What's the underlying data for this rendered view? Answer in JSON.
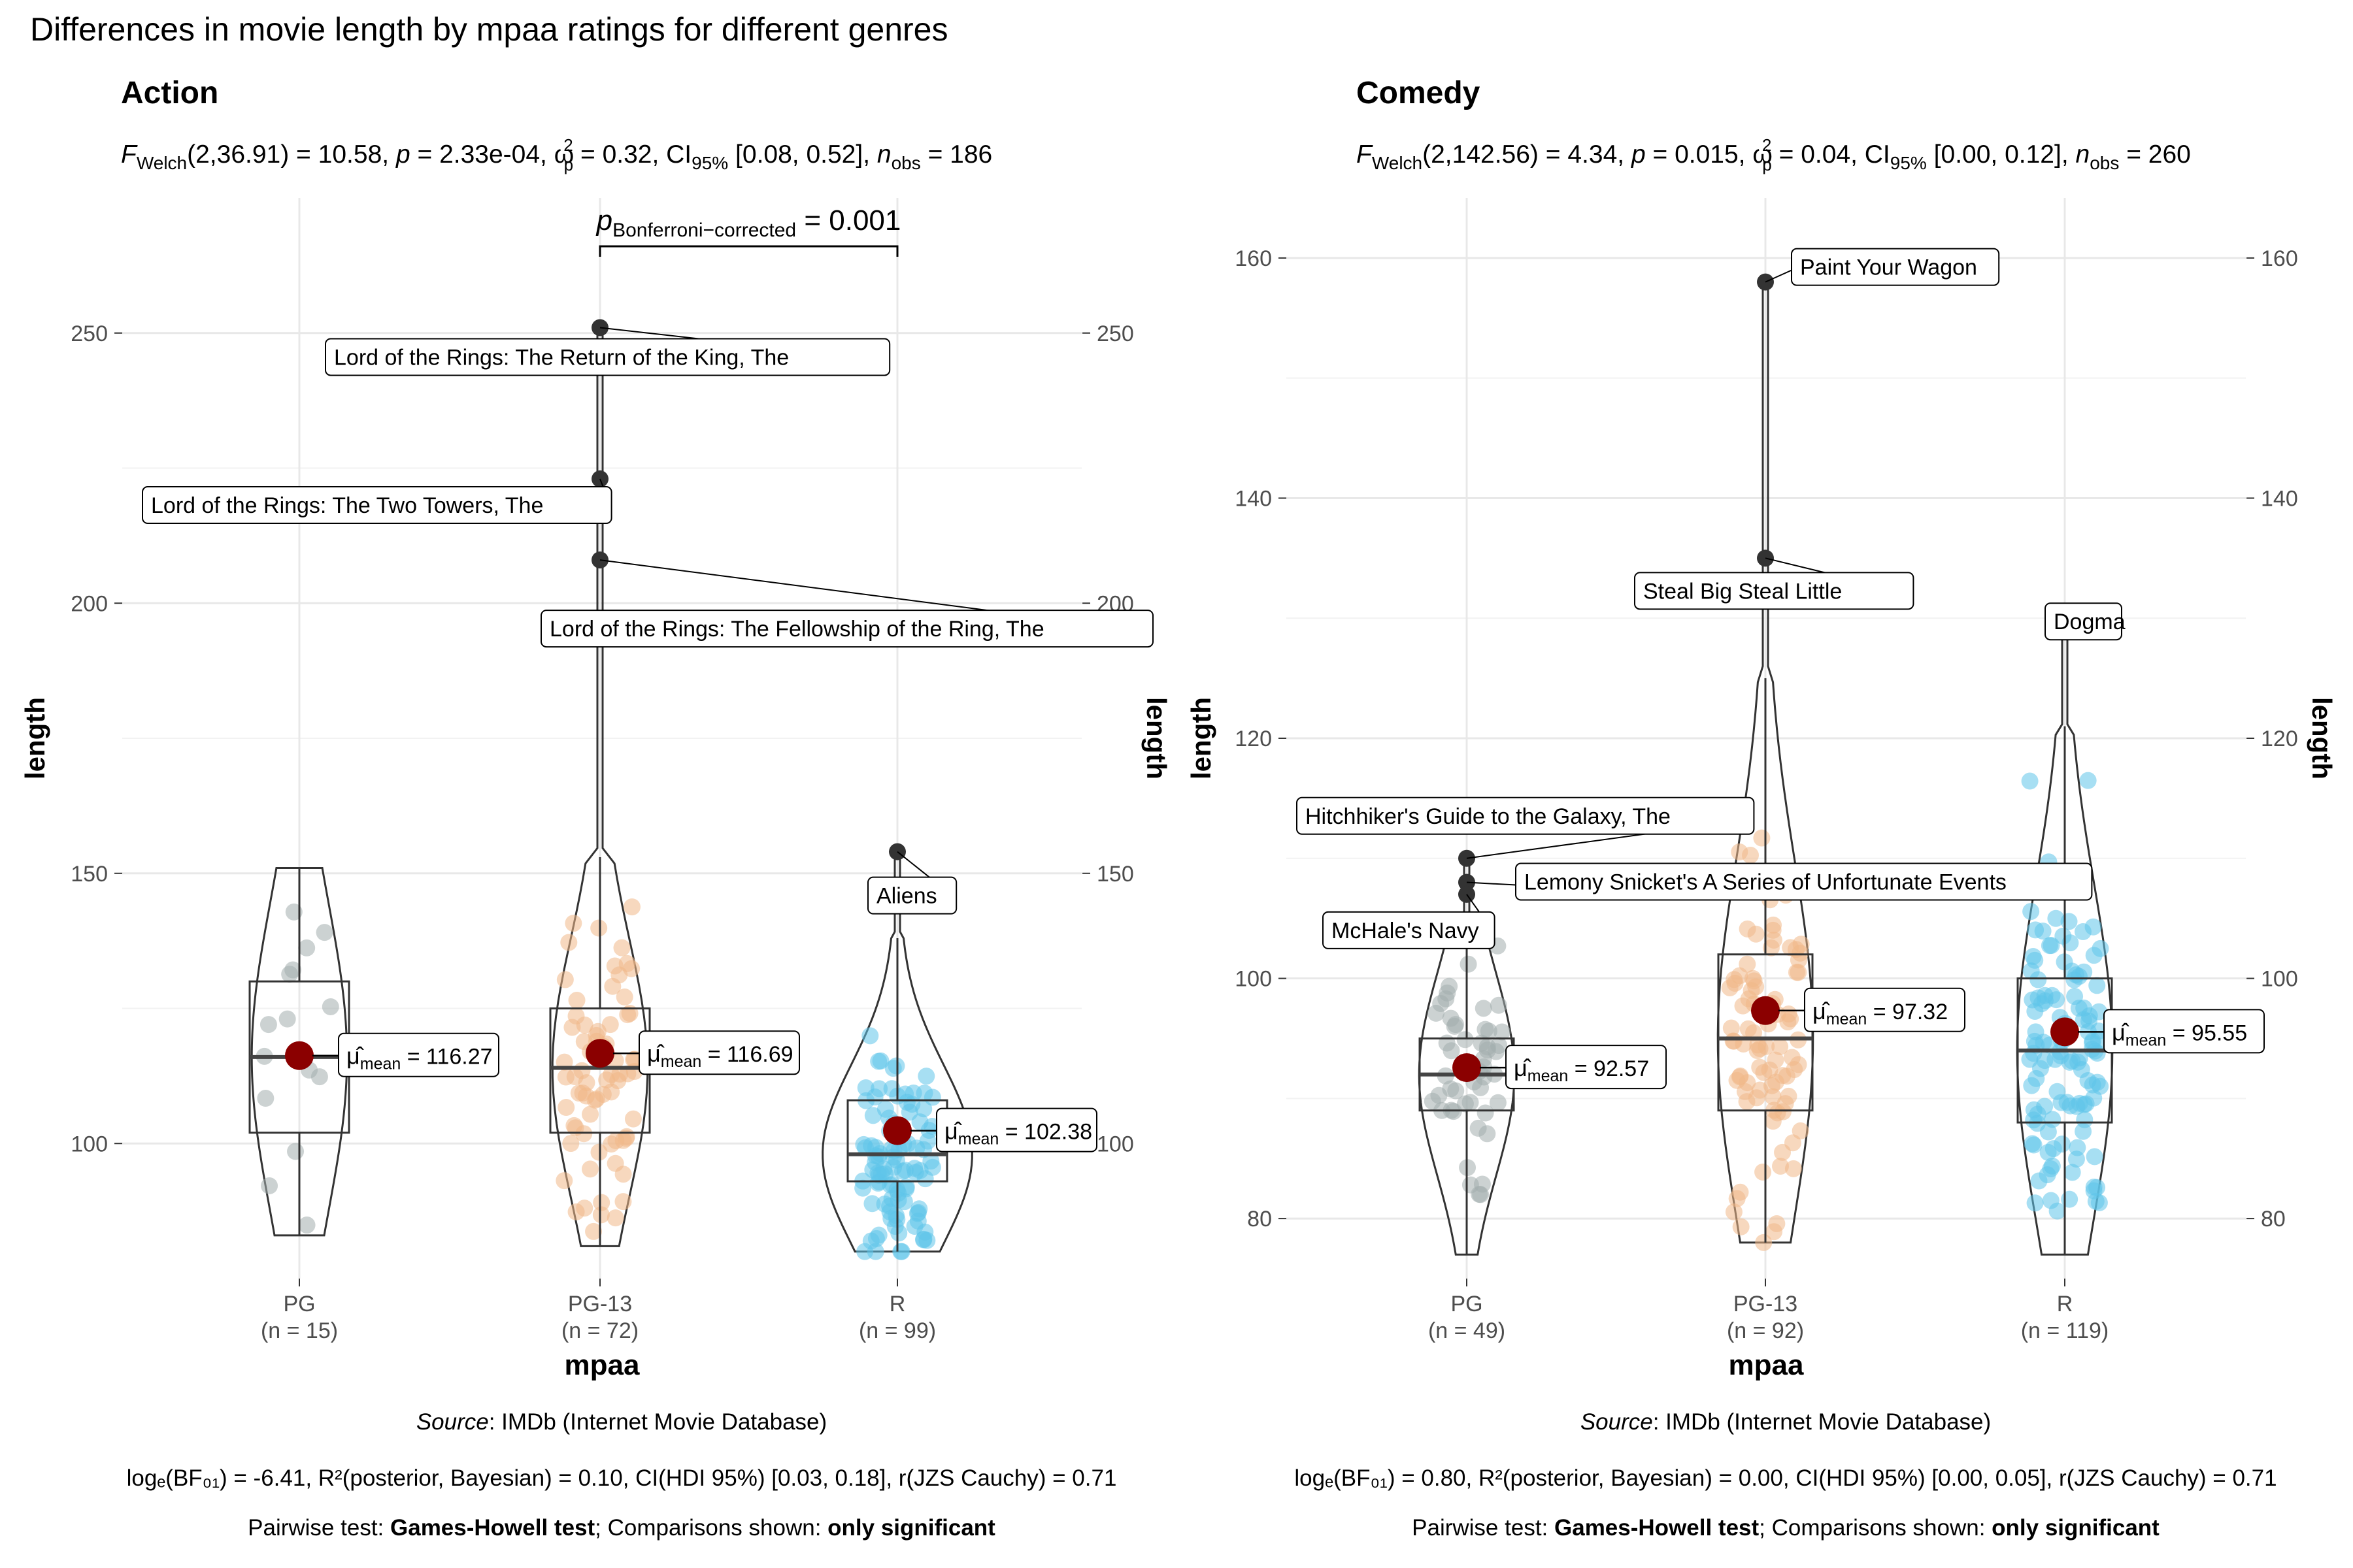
{
  "title": "Differences in movie length by mpaa ratings for different genres",
  "colors": {
    "PG": "#a3adad",
    "PG-13": "#f0b888",
    "R": "#5ec4ea",
    "mean": "#8b0000",
    "outlier": "#333333",
    "grid": "#e8e8e8"
  },
  "chart_data": [
    {
      "type": "violin-box-scatter",
      "facet": "Action",
      "stats_sub": {
        "f": "F",
        "fsub": "Welch",
        "df": "(2,36.91) = 10.58, ",
        "p": "p",
        "pval": " = 2.33e-04, ",
        "omega": "ω",
        "omsup": "2",
        "omsub": "p",
        "omval": " = 0.32, CI",
        "cisub": "95%",
        "ci": " [0.08, 0.52], ",
        "n": "n",
        "nsub": "obs",
        "nval": " = 186"
      },
      "xlabel": "mpaa",
      "ylabel": "length",
      "ylim": [
        75,
        275
      ],
      "yticks": [
        100,
        150,
        200,
        250
      ],
      "categories": [
        "PG",
        "PG-13",
        "R"
      ],
      "counts": [
        "(n = 15)",
        "(n = 72)",
        "(n = 99)"
      ],
      "box": [
        {
          "q1": 102,
          "median": 116,
          "q3": 130,
          "wlo": 83,
          "whi": 151
        },
        {
          "q1": 102,
          "median": 114,
          "q3": 125,
          "wlo": 81,
          "whi": 153
        },
        {
          "q1": 93,
          "median": 98,
          "q3": 108,
          "wlo": 80,
          "whi": 138
        }
      ],
      "means": [
        116.27,
        116.69,
        102.38
      ],
      "mean_labels": [
        "116.27",
        "116.69",
        "102.38"
      ],
      "outliers": [
        {
          "group": 1,
          "value": 251,
          "label": "Lord of the Rings: The Return of the King, The"
        },
        {
          "group": 1,
          "value": 223,
          "label": "Lord of the Rings: The Two Towers, The"
        },
        {
          "group": 1,
          "value": 208,
          "label": "Lord of the Rings: The Fellowship of the Ring, The"
        },
        {
          "group": 2,
          "value": 154,
          "label": "Aliens"
        }
      ],
      "pairwise": {
        "from": 1,
        "to": 2,
        "label_p": "p",
        "label_sub": "Bonferroni−corrected",
        "label_val": " = 0.001"
      },
      "caption_source": "Source",
      "caption_source_rest": ": IMDb (Internet Movie Database)",
      "bayes": "logₑ(BF₀₁) = -6.41, R²(posterior, Bayesian) = 0.10, CI(HDI 95%) [0.03, 0.18], r(JZS Cauchy) = 0.71",
      "pairwise_note": {
        "a": "Pairwise test: ",
        "b": "Games-Howell test",
        "c": "; Comparisons shown: ",
        "d": "only significant"
      }
    },
    {
      "type": "violin-box-scatter",
      "facet": "Comedy",
      "stats_sub": {
        "f": "F",
        "fsub": "Welch",
        "df": "(2,142.56) = 4.34, ",
        "p": "p",
        "pval": " = 0.015, ",
        "omega": "ω",
        "omsup": "2",
        "omsub": "p",
        "omval": " = 0.04, CI",
        "cisub": "95%",
        "ci": " [0.00, 0.12], ",
        "n": "n",
        "nsub": "obs",
        "nval": " = 260"
      },
      "xlabel": "mpaa",
      "ylabel": "length",
      "ylim": [
        75,
        165
      ],
      "yticks": [
        80,
        100,
        120,
        140,
        160
      ],
      "categories": [
        "PG",
        "PG-13",
        "R"
      ],
      "counts": [
        "(n = 49)",
        "(n = 92)",
        "(n = 119)"
      ],
      "box": [
        {
          "q1": 89,
          "median": 92,
          "q3": 95,
          "wlo": 77,
          "whi": 103
        },
        {
          "q1": 89,
          "median": 95,
          "q3": 102,
          "wlo": 78,
          "whi": 125
        },
        {
          "q1": 88,
          "median": 94,
          "q3": 100,
          "wlo": 77,
          "whi": 121
        }
      ],
      "means": [
        92.57,
        97.32,
        95.55
      ],
      "mean_labels": [
        "92.57",
        "97.32",
        "95.55"
      ],
      "outliers": [
        {
          "group": 1,
          "value": 158,
          "label": "Paint Your Wagon"
        },
        {
          "group": 1,
          "value": 135,
          "label": "Steal Big Steal Little"
        },
        {
          "group": 2,
          "value": 130,
          "label": "Dogma"
        },
        {
          "group": 0,
          "value": 110,
          "label": "Hitchhiker's Guide to the Galaxy, The"
        },
        {
          "group": 0,
          "value": 108,
          "label": "Lemony Snicket's A Series of Unfortunate Events"
        },
        {
          "group": 0,
          "value": 107,
          "label": "McHale's Navy"
        }
      ],
      "caption_source": "Source",
      "caption_source_rest": ": IMDb (Internet Movie Database)",
      "bayes": "logₑ(BF₀₁) = 0.80, R²(posterior, Bayesian) = 0.00, CI(HDI 95%) [0.00, 0.05], r(JZS Cauchy) = 0.71",
      "pairwise_note": {
        "a": "Pairwise test: ",
        "b": "Games-Howell test",
        "c": "; Comparisons shown: ",
        "d": "only significant"
      }
    }
  ]
}
